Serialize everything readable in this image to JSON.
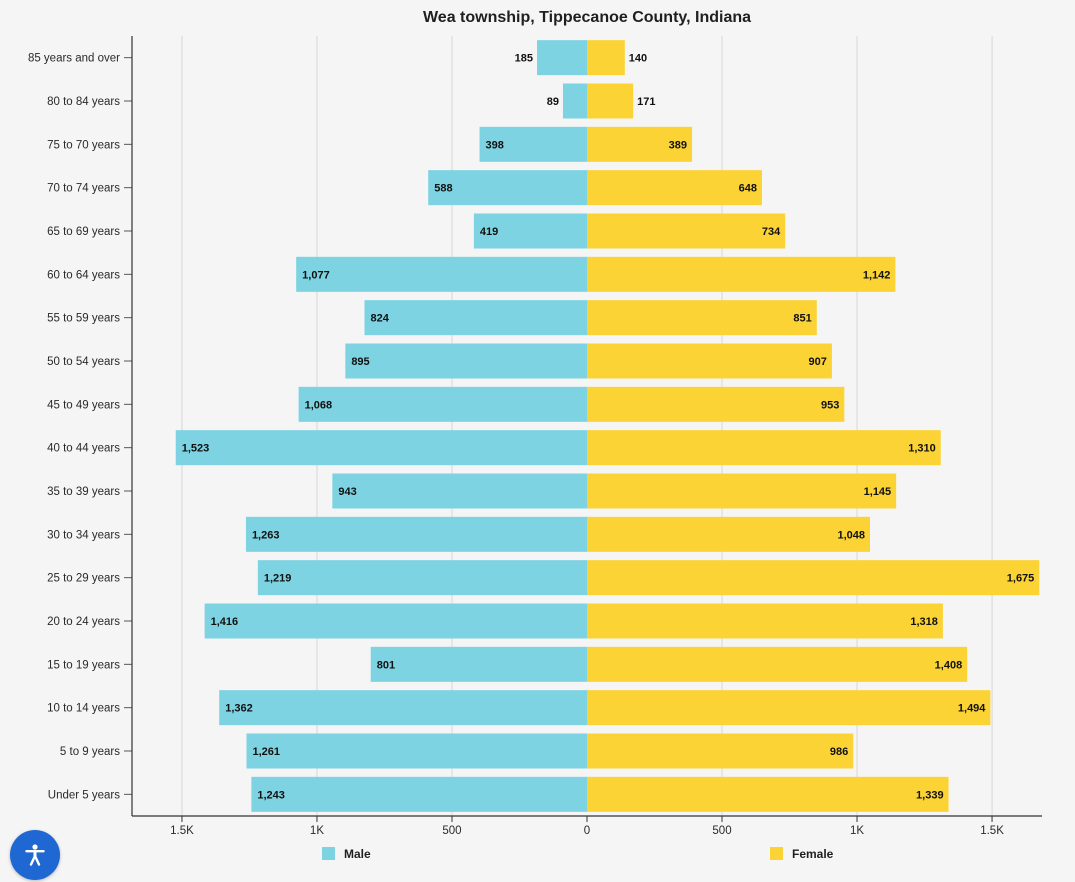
{
  "chart_data": {
    "type": "bar",
    "orientation": "horizontal",
    "title": "Wea township, Tippecanoe County, Indiana",
    "categories": [
      "85 years and over",
      "80 to 84 years",
      "75 to 70 years",
      "70 to 74 years",
      "65 to 69 years",
      "60 to 64 years",
      "55 to 59 years",
      "50 to 54 years",
      "45 to 49 years",
      "40 to 44 years",
      "35 to 39 years",
      "30 to 34 years",
      "25 to 29 years",
      "20 to 24 years",
      "15 to 19 years",
      "10 to 14 years",
      "5 to 9 years",
      "Under 5 years"
    ],
    "series": [
      {
        "name": "Male",
        "color": "#7dd3e2",
        "direction": "left",
        "values": [
          185,
          89,
          398,
          588,
          419,
          1077,
          824,
          895,
          1068,
          1523,
          943,
          1263,
          1219,
          1416,
          801,
          1362,
          1261,
          1243
        ],
        "labels": [
          "185",
          "89",
          "398",
          "588",
          "419",
          "1,077",
          "824",
          "895",
          "1,068",
          "1,523",
          "943",
          "1,263",
          "1,219",
          "1,416",
          "801",
          "1,362",
          "1,261",
          "1,243"
        ]
      },
      {
        "name": "Female",
        "color": "#fcd335",
        "direction": "right",
        "values": [
          140,
          171,
          389,
          648,
          734,
          1142,
          851,
          907,
          953,
          1310,
          1145,
          1048,
          1675,
          1318,
          1408,
          1494,
          986,
          1339
        ],
        "labels": [
          "140",
          "171",
          "389",
          "648",
          "734",
          "1,142",
          "851",
          "907",
          "953",
          "1,310",
          "1,145",
          "1,048",
          "1,675",
          "1,318",
          "1,408",
          "1,494",
          "986",
          "1,339"
        ]
      }
    ],
    "x_ticks": [
      {
        "value": -1500,
        "label": "1.5K"
      },
      {
        "value": -1000,
        "label": "1K"
      },
      {
        "value": -500,
        "label": "500"
      },
      {
        "value": 0,
        "label": "0"
      },
      {
        "value": 500,
        "label": "500"
      },
      {
        "value": 1000,
        "label": "1K"
      },
      {
        "value": 1500,
        "label": "1.5K"
      }
    ],
    "xlim": [
      -1685,
      1685
    ],
    "grid": true,
    "legend_position": "bottom"
  },
  "accessibility": {
    "icon": "accessibility-icon"
  }
}
